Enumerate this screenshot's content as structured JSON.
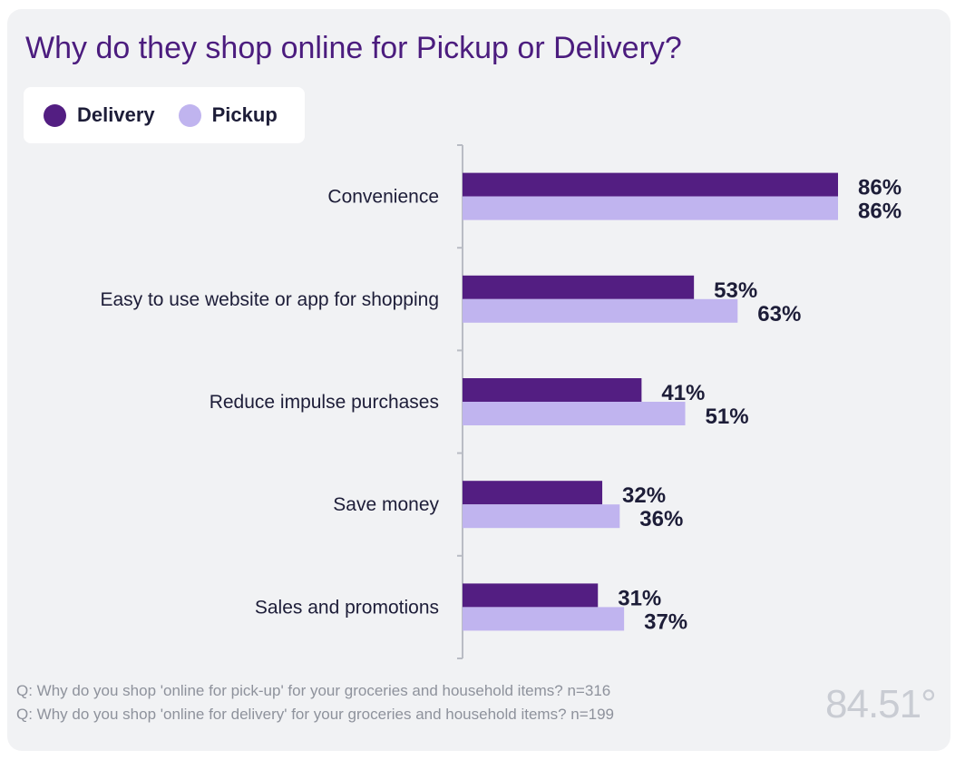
{
  "chart_data": {
    "type": "bar",
    "orientation": "horizontal",
    "title": "Why do they shop online for Pickup or Delivery?",
    "categories": [
      "Convenience",
      "Easy to use website or app for shopping",
      "Reduce impulse purchases",
      "Save money",
      "Sales and promotions"
    ],
    "series": [
      {
        "name": "Delivery",
        "values": [
          86,
          53,
          41,
          32,
          31
        ],
        "labels": [
          "86%",
          "53%",
          "41%",
          "32%",
          "31%"
        ]
      },
      {
        "name": "Pickup",
        "values": [
          86,
          63,
          51,
          36,
          37
        ],
        "labels": [
          "86%",
          "63%",
          "51%",
          "36%",
          "37%"
        ]
      }
    ],
    "xlim": [
      0,
      100
    ],
    "grid": false,
    "legend_position": "top-left",
    "colors": {
      "Delivery": "#531e82",
      "Pickup": "#c0b4ef"
    }
  },
  "footnotes": [
    "Q:  Why do you shop 'online for pick-up' for your groceries and household items? n=316",
    "Q:  Why do you shop 'online for delivery' for your groceries and household items? n=199"
  ],
  "logo_text": "84.51°"
}
